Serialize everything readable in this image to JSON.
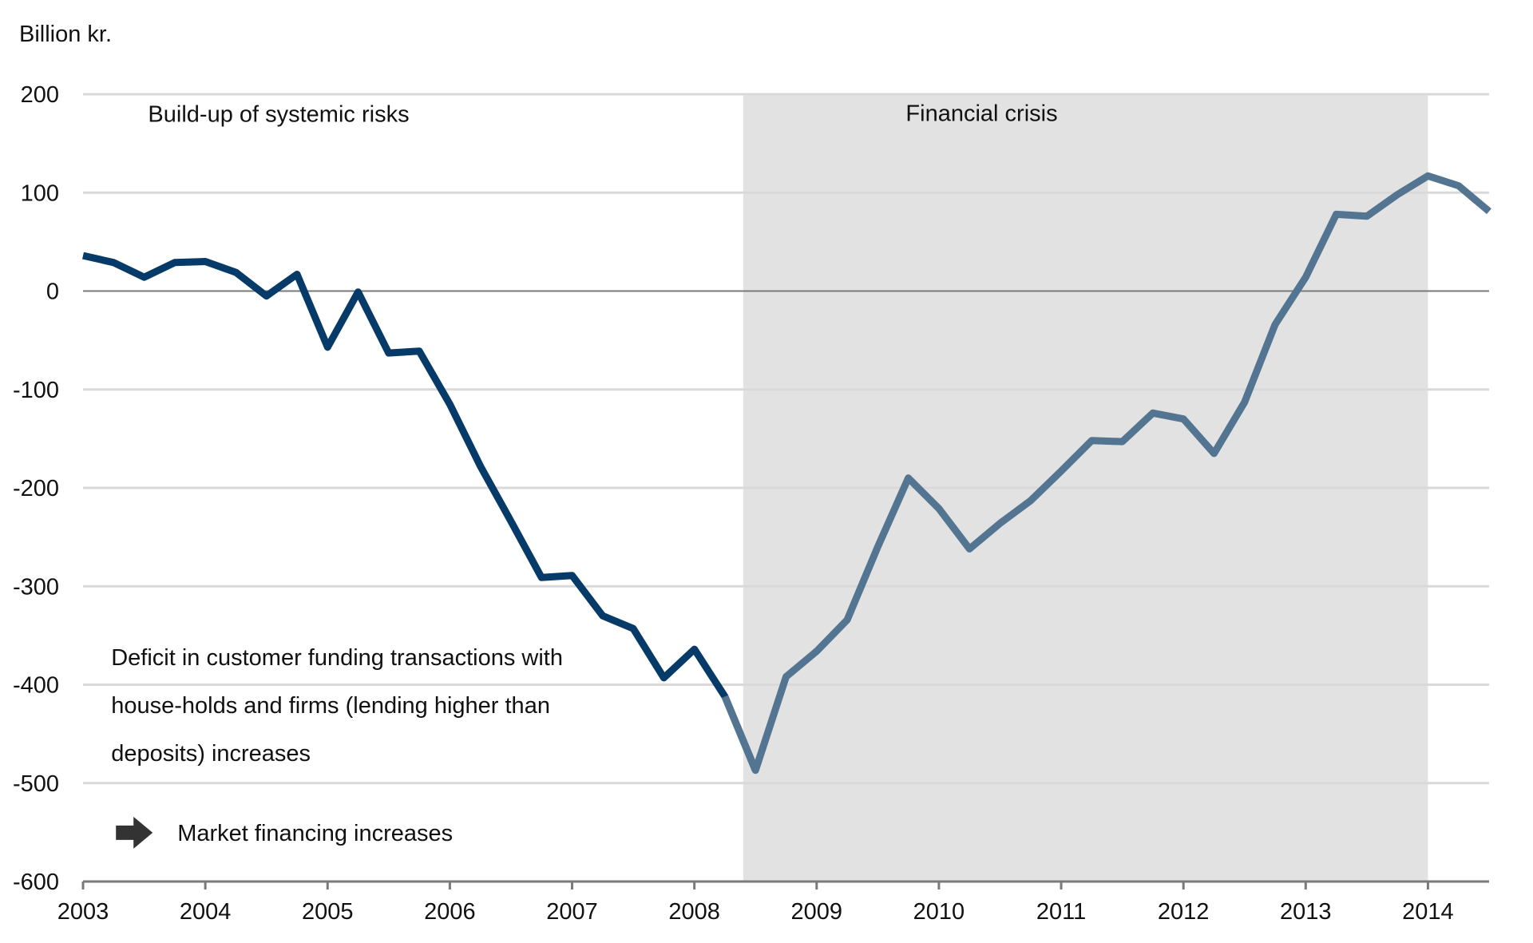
{
  "chart_data": {
    "type": "line",
    "title": "",
    "ylabel": "Billion kr.",
    "xlabel": "",
    "xlim": [
      2003,
      2014.5
    ],
    "ylim": [
      -600,
      200
    ],
    "yticks": [
      200,
      100,
      0,
      -100,
      -200,
      -300,
      -400,
      -500,
      -600
    ],
    "ytick_labels": [
      "200",
      "100",
      "0",
      "-100",
      "-200",
      "-300",
      "-400",
      "-500",
      "-600"
    ],
    "xticks": [
      2003,
      2004,
      2005,
      2006,
      2007,
      2008,
      2009,
      2010,
      2011,
      2012,
      2013,
      2014
    ],
    "xtick_labels": [
      "2003",
      "2004",
      "2005",
      "2006",
      "2007",
      "2008",
      "2009",
      "2010",
      "2011",
      "2012",
      "2013",
      "2014"
    ],
    "grid": true,
    "shaded_period": {
      "start": 2008.4,
      "end": 2014.0,
      "color": "#e2e2e2"
    },
    "period_labels": [
      {
        "text": "Build-up of systemic risks",
        "x": 2004.6,
        "y": 172
      },
      {
        "text": "Financial crisis",
        "x": 2010.35,
        "y": 173
      }
    ],
    "annotations": {
      "lines": [
        "Deficit in customer funding transactions with",
        "house-holds and firms (lending higher than",
        "deposits) increases"
      ],
      "arrow_text": "Market financing increases",
      "anchor_x": 2003.23,
      "anchor_y": -380
    },
    "series": [
      {
        "color_pre": "#063a68",
        "color_crisis": "#537591",
        "x": [
          2003.0,
          2003.25,
          2003.5,
          2003.75,
          2004.0,
          2004.25,
          2004.5,
          2004.75,
          2005.0,
          2005.25,
          2005.5,
          2005.75,
          2006.0,
          2006.25,
          2006.5,
          2006.75,
          2007.0,
          2007.25,
          2007.5,
          2007.75,
          2008.0,
          2008.25,
          2008.5,
          2008.75,
          2009.0,
          2009.25,
          2009.5,
          2009.75,
          2010.0,
          2010.25,
          2010.5,
          2010.75,
          2011.0,
          2011.25,
          2011.5,
          2011.75,
          2012.0,
          2012.25,
          2012.5,
          2012.75,
          2013.0,
          2013.25,
          2013.5,
          2013.75,
          2014.0,
          2014.25,
          2014.5
        ],
        "values": [
          36,
          29,
          14,
          29,
          30,
          19,
          -5,
          17,
          -57,
          -1,
          -63,
          -61,
          -115,
          -178,
          -234,
          -291,
          -289,
          -330,
          -343,
          -393,
          -364,
          -412,
          -487,
          -392,
          -366,
          -334,
          -260,
          -190,
          -221,
          -262,
          -236,
          -213,
          -183,
          -152,
          -153,
          -124,
          -130,
          -165,
          -113,
          -34,
          14,
          78,
          76,
          98,
          117,
          107,
          81
        ]
      }
    ]
  }
}
